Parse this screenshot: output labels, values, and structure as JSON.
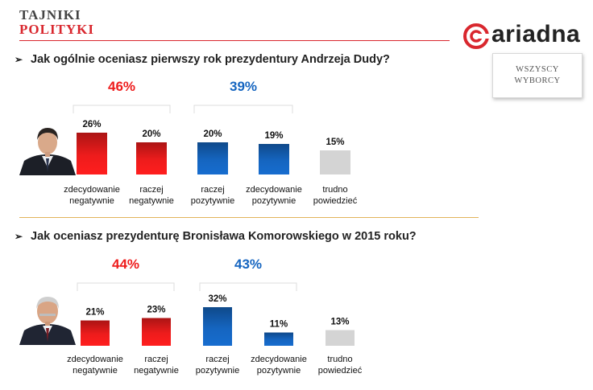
{
  "brand": {
    "line1": "TAJNIKI",
    "line2": "POLITYKI"
  },
  "logo": {
    "word": "ariadna"
  },
  "badge": {
    "line1": "WSZYSCY",
    "line2": "WYBORCY"
  },
  "questions": [
    "Jak ogólnie oceniasz pierwszy rok prezydentury Andrzeja Dudy?",
    "Jak oceniasz prezydenturę Bronisława Komorowskiego w 2015 roku?"
  ],
  "colors": {
    "negative": "#ee1c1c",
    "positive": "#1565c0",
    "neutral": "#d4d4d4",
    "accent": "#d9272e"
  },
  "chart_data": [
    {
      "type": "bar",
      "title": "Jak ogólnie oceniasz pierwszy rok prezydentury Andrzeja Dudy?",
      "categories": [
        [
          "zdecydowanie",
          "negatywnie"
        ],
        [
          "raczej",
          "negatywnie"
        ],
        [
          "raczej",
          "pozytywnie"
        ],
        [
          "zdecydowanie",
          "pozytywnie"
        ],
        [
          "trudno",
          "powiedzieć"
        ]
      ],
      "values": [
        26,
        20,
        20,
        19,
        15
      ],
      "value_labels": [
        "26%",
        "20%",
        "20%",
        "19%",
        "15%"
      ],
      "groups": [
        {
          "label": "46%",
          "members": [
            0,
            1
          ],
          "color": "negative"
        },
        {
          "label": "39%",
          "members": [
            2,
            3
          ],
          "color": "positive"
        }
      ],
      "bar_colors": [
        "negative",
        "negative",
        "positive",
        "positive",
        "neutral"
      ],
      "ylim": [
        0,
        32
      ],
      "grid": false
    },
    {
      "type": "bar",
      "title": "Jak oceniasz prezydenturę Bronisława Komorowskiego w 2015 roku?",
      "categories": [
        [
          "zdecydowanie",
          "negatywnie"
        ],
        [
          "raczej",
          "negatywnie"
        ],
        [
          "raczej",
          "pozytywnie"
        ],
        [
          "zdecydowanie",
          "pozytywnie"
        ],
        [
          "trudno",
          "powiedzieć"
        ]
      ],
      "values": [
        21,
        23,
        32,
        11,
        13
      ],
      "value_labels": [
        "21%",
        "23%",
        "32%",
        "11%",
        "13%"
      ],
      "groups": [
        {
          "label": "44%",
          "members": [
            0,
            1
          ],
          "color": "negative"
        },
        {
          "label": "43%",
          "members": [
            2,
            3
          ],
          "color": "positive"
        }
      ],
      "bar_colors": [
        "negative",
        "negative",
        "positive",
        "positive",
        "neutral"
      ],
      "ylim": [
        0,
        32
      ],
      "grid": false
    }
  ]
}
